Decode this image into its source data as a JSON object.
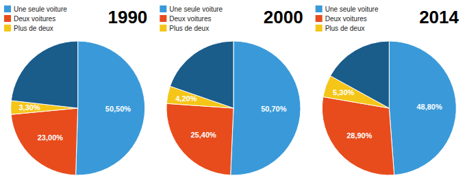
{
  "chart_data": [
    {
      "type": "pie",
      "title": "1990",
      "categories": [
        "Une seule voiture",
        "Deux voitures",
        "Plus de deux",
        null
      ],
      "values": [
        50.5,
        23.0,
        3.3,
        23.2
      ],
      "value_labels": [
        "50,50%",
        "23,00%",
        "3,30%",
        null
      ],
      "colors": [
        "#3a9ad9",
        "#e84c1c",
        "#f5c518",
        "#1a5c8a"
      ],
      "data_labels": true,
      "legend": "upper left"
    },
    {
      "type": "pie",
      "title": "2000",
      "categories": [
        "Une seule voiture",
        "Deux voitures",
        "Plus de deux",
        null
      ],
      "values": [
        50.7,
        25.4,
        4.2,
        19.7
      ],
      "value_labels": [
        "50,70%",
        "25,40%",
        "4,20%",
        null
      ],
      "colors": [
        "#3a9ad9",
        "#e84c1c",
        "#f5c518",
        "#1a5c8a"
      ],
      "data_labels": true,
      "legend": "upper left"
    },
    {
      "type": "pie",
      "title": "2014",
      "categories": [
        "Une seule voiture",
        "Deux voitures",
        "Plus de deux",
        null
      ],
      "values": [
        48.8,
        28.9,
        5.3,
        17.0
      ],
      "value_labels": [
        "48,80%",
        "28,90%",
        "5,30%",
        null
      ],
      "colors": [
        "#3a9ad9",
        "#e84c1c",
        "#f5c518",
        "#1a5c8a"
      ],
      "data_labels": true,
      "legend": "upper left"
    }
  ]
}
